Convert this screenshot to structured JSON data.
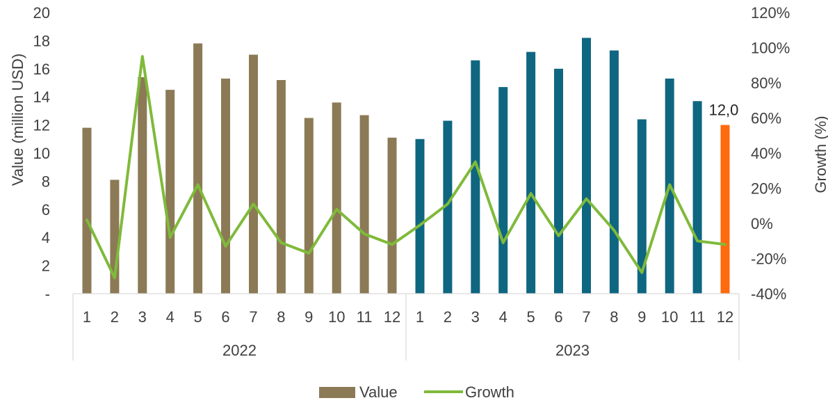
{
  "chart_data": {
    "type": "bar",
    "title": "",
    "ylabel": "Value (million USD)",
    "y2label": "Growth (%)",
    "ylim": [
      0,
      20
    ],
    "y_ticks": [
      "-",
      "2",
      "4",
      "6",
      "8",
      "10",
      "12",
      "14",
      "16",
      "18",
      "20"
    ],
    "y2lim": [
      -40,
      120
    ],
    "y2_ticks": [
      "-40%",
      "-20%",
      "0%",
      "20%",
      "40%",
      "60%",
      "80%",
      "100%",
      "120%"
    ],
    "grid": false,
    "legend_position": "bottom",
    "year_groups": [
      {
        "label": "2022",
        "months": [
          "1",
          "2",
          "3",
          "4",
          "5",
          "6",
          "7",
          "8",
          "9",
          "10",
          "11",
          "12"
        ]
      },
      {
        "label": "2023",
        "months": [
          "1",
          "2",
          "3",
          "4",
          "5",
          "6",
          "7",
          "8",
          "9",
          "10",
          "11",
          "12"
        ]
      }
    ],
    "series": [
      {
        "name": "Value",
        "type": "bar",
        "values": [
          11.8,
          8.1,
          15.4,
          14.5,
          17.8,
          15.3,
          17.0,
          15.2,
          12.5,
          13.6,
          12.7,
          11.1,
          11.0,
          12.3,
          16.6,
          14.7,
          17.2,
          16.0,
          18.2,
          17.3,
          12.4,
          15.3,
          13.7,
          12.0
        ]
      },
      {
        "name": "Growth",
        "type": "line",
        "values": [
          2,
          -31,
          95,
          -8,
          22,
          -13,
          11,
          -11,
          -17,
          8,
          -6,
          -12,
          -1,
          11,
          35,
          -11,
          17,
          -7,
          14,
          -4,
          -28,
          22,
          -10,
          -12
        ]
      }
    ],
    "colors": {
      "value_2022": "#8b7a55",
      "value_2023": "#0f6680",
      "value_last": "#ff6a0d",
      "growth": "#7fba3a"
    },
    "annotations": [
      {
        "point_index": 23,
        "text": "12,0"
      }
    ]
  }
}
